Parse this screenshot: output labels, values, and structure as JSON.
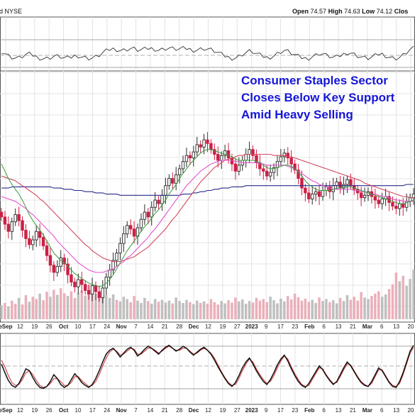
{
  "header": {
    "left_fragment": "nd  NYSE",
    "open_label": "Open",
    "open_value": "74.57",
    "high_label": "High",
    "high_value": "74.63",
    "low_label": "Low",
    "low_value": "74.12",
    "close_label": "Clos"
  },
  "annotation": {
    "line1": "Consumer Staples Sector",
    "line2": "Closes Below Key Support",
    "line3": "Amid Heavy Selling"
  },
  "colors": {
    "up": "#2a2a2a",
    "down": "#cc1f44",
    "ma_short": "#3a9a3a",
    "ma_mid": "#e055cf",
    "ma_long": "#d04a5e",
    "ma_longest": "#2a2a8a",
    "annotation": "#1616d8",
    "stoch_k": "#111111",
    "stoch_d": "#cc2a2a",
    "vol_up": "#b8b8b8",
    "vol_down": "#e9a7b3"
  },
  "chart_data": {
    "type": "candlestick",
    "x_axis_labels": [
      "eSep",
      "12",
      "19",
      "26",
      "Oct",
      "10",
      "17",
      "24",
      "Nov",
      "7",
      "14",
      "21",
      "28",
      "Dec",
      "12",
      "19",
      "27",
      "2023",
      "9",
      "17",
      "23",
      "Feb",
      "6",
      "13",
      "21",
      "Mar",
      "6",
      "13",
      "20"
    ],
    "x_axis_bold": [
      "eSep",
      "Oct",
      "Nov",
      "Dec",
      "2023",
      "Feb",
      "Mar"
    ],
    "x_axis_labels_bottom": [
      "eSep",
      "12",
      "19",
      "26",
      "Oct",
      "10",
      "17",
      "24",
      "Nov",
      "7",
      "14",
      "21",
      "28",
      "Dec",
      "12",
      "19",
      "27",
      "2023",
      "9",
      "17",
      "23",
      "Feb",
      "6",
      "13",
      "21",
      "Mar",
      "6",
      "13",
      "20"
    ],
    "closes": [
      68.2,
      67.6,
      67.0,
      67.8,
      68.4,
      67.9,
      67.1,
      66.4,
      65.9,
      66.3,
      67.0,
      66.5,
      65.8,
      65.0,
      64.2,
      63.6,
      64.1,
      64.8,
      64.3,
      63.4,
      62.8,
      62.4,
      63.0,
      62.6,
      62.1,
      61.8,
      62.5,
      62.0,
      61.5,
      62.3,
      63.2,
      63.8,
      64.6,
      65.2,
      66.0,
      66.8,
      67.5,
      67.2,
      66.6,
      67.3,
      68.0,
      68.6,
      68.2,
      69.0,
      69.6,
      69.3,
      70.0,
      70.8,
      71.4,
      71.0,
      71.7,
      72.2,
      72.8,
      73.3,
      73.1,
      73.6,
      74.2,
      74.0,
      74.6,
      74.3,
      73.8,
      73.4,
      72.9,
      73.3,
      73.7,
      73.1,
      72.6,
      72.0,
      72.5,
      72.9,
      73.4,
      73.8,
      73.3,
      72.7,
      72.2,
      72.0,
      71.6,
      71.9,
      72.3,
      72.8,
      73.2,
      73.5,
      73.1,
      72.6,
      72.1,
      71.4,
      70.6,
      70.2,
      69.7,
      70.1,
      70.3,
      69.9,
      70.4,
      70.7,
      70.3,
      70.8,
      71.1,
      70.6,
      70.9,
      71.3,
      70.8,
      70.5,
      70.2,
      69.8,
      70.0,
      70.3,
      69.9,
      69.6,
      69.3,
      69.7,
      69.9,
      69.4,
      69.1,
      68.9,
      69.3,
      69.0,
      69.5,
      69.8,
      70.1
    ],
    "ma_short": [
      72.6,
      72.0,
      71.4,
      70.9,
      70.5,
      70.1,
      69.6,
      69.0,
      68.4,
      67.9,
      67.5,
      67.1,
      66.7,
      66.2,
      65.7,
      65.2,
      64.9,
      64.6,
      64.4,
      64.1,
      63.8,
      63.5,
      63.3,
      63.1,
      62.9,
      62.7,
      62.6,
      62.5,
      62.4,
      62.5,
      62.7,
      63.0,
      63.4,
      63.9,
      64.4,
      64.9,
      65.4,
      65.8,
      66.2,
      66.6,
      67.0,
      67.4,
      67.7,
      68.1,
      68.5,
      68.8,
      69.2,
      69.6,
      70.1,
      70.5,
      70.9,
      71.4,
      71.8,
      72.2,
      72.6,
      72.9,
      73.2,
      73.5,
      73.7,
      73.8,
      73.8,
      73.7,
      73.6,
      73.5,
      73.4,
      73.3,
      73.2,
      73.0,
      72.9,
      72.9,
      72.9,
      72.9,
      72.9,
      72.8,
      72.7,
      72.5,
      72.3,
      72.2,
      72.2,
      72.3,
      72.4,
      72.5,
      72.5,
      72.4,
      72.2,
      71.9,
      71.6,
      71.2,
      70.9,
      70.7,
      70.5,
      70.4,
      70.4,
      70.4,
      70.4,
      70.5,
      70.6,
      70.6,
      70.7,
      70.7,
      70.7,
      70.6,
      70.5,
      70.4,
      70.3,
      70.2,
      70.1,
      70.0,
      69.9,
      69.8,
      69.7,
      69.6,
      69.5,
      69.4,
      69.3,
      69.3,
      69.4,
      69.5,
      69.6
    ],
    "ma_mid": [
      69.9,
      69.8,
      69.7,
      69.6,
      69.5,
      69.3,
      69.1,
      68.9,
      68.6,
      68.4,
      68.1,
      67.8,
      67.5,
      67.2,
      66.9,
      66.6,
      66.2,
      65.9,
      65.6,
      65.3,
      65.0,
      64.7,
      64.4,
      64.2,
      64.0,
      63.8,
      63.7,
      63.6,
      63.6,
      63.6,
      63.7,
      63.8,
      63.9,
      64.1,
      64.3,
      64.5,
      64.8,
      65.0,
      65.3,
      65.6,
      65.9,
      66.2,
      66.5,
      66.9,
      67.2,
      67.6,
      68.0,
      68.4,
      68.8,
      69.2,
      69.6,
      70.0,
      70.4,
      70.8,
      71.1,
      71.4,
      71.7,
      72.0,
      72.2,
      72.4,
      72.6,
      72.7,
      72.8,
      72.9,
      72.9,
      72.9,
      72.9,
      72.8,
      72.8,
      72.7,
      72.7,
      72.7,
      72.7,
      72.7,
      72.6,
      72.6,
      72.5,
      72.5,
      72.5,
      72.5,
      72.5,
      72.5,
      72.4,
      72.3,
      72.2,
      72.0,
      71.8,
      71.6,
      71.4,
      71.2,
      71.1,
      70.9,
      70.8,
      70.7,
      70.6,
      70.5,
      70.5,
      70.5,
      70.5,
      70.5,
      70.5,
      70.4,
      70.4,
      70.3,
      70.3,
      70.2,
      70.1,
      70.1,
      70.0,
      69.9,
      69.9,
      69.8,
      69.7,
      69.6,
      69.6,
      69.5,
      69.5,
      69.5,
      69.5
    ],
    "ma_long": [
      71.6,
      71.5,
      71.4,
      71.3,
      71.2,
      71.0,
      70.8,
      70.6,
      70.4,
      70.2,
      70.0,
      69.7,
      69.5,
      69.2,
      68.9,
      68.6,
      68.3,
      68.0,
      67.7,
      67.4,
      67.1,
      66.8,
      66.5,
      66.2,
      65.9,
      65.7,
      65.4,
      65.2,
      65.0,
      64.8,
      64.7,
      64.6,
      64.5,
      64.5,
      64.5,
      64.6,
      64.7,
      64.8,
      64.9,
      65.1,
      65.3,
      65.5,
      65.7,
      66.0,
      66.3,
      66.6,
      66.9,
      67.2,
      67.6,
      68.0,
      68.3,
      68.7,
      69.1,
      69.5,
      69.9,
      70.3,
      70.7,
      71.1,
      71.4,
      71.7,
      72.0,
      72.3,
      72.5,
      72.7,
      72.9,
      73.0,
      73.1,
      73.2,
      73.3,
      73.3,
      73.4,
      73.4,
      73.4,
      73.4,
      73.4,
      73.4,
      73.4,
      73.4,
      73.3,
      73.3,
      73.3,
      73.3,
      73.2,
      73.2,
      73.1,
      73.0,
      72.9,
      72.8,
      72.7,
      72.6,
      72.5,
      72.4,
      72.3,
      72.2,
      72.1,
      72.0,
      71.9,
      71.8,
      71.7,
      71.6,
      71.5,
      71.4,
      71.3,
      71.2,
      71.0,
      70.9,
      70.8,
      70.7,
      70.6,
      70.5,
      70.4,
      70.3,
      70.2,
      70.1,
      70.0,
      69.9,
      69.9,
      69.8,
      69.8
    ],
    "ma_longest": [
      70.6,
      70.6,
      70.6,
      70.7,
      70.7,
      70.7,
      70.7,
      70.7,
      70.7,
      70.7,
      70.7,
      70.7,
      70.7,
      70.7,
      70.7,
      70.6,
      70.6,
      70.6,
      70.5,
      70.5,
      70.5,
      70.4,
      70.4,
      70.4,
      70.3,
      70.3,
      70.3,
      70.2,
      70.2,
      70.2,
      70.1,
      70.1,
      70.1,
      70.1,
      70.0,
      70.0,
      70.0,
      70.0,
      70.0,
      70.0,
      70.0,
      70.0,
      70.0,
      70.0,
      70.0,
      70.0,
      70.0,
      70.0,
      70.0,
      70.0,
      70.0,
      70.0,
      70.1,
      70.1,
      70.1,
      70.2,
      70.2,
      70.3,
      70.3,
      70.4,
      70.4,
      70.5,
      70.5,
      70.6,
      70.6,
      70.6,
      70.7,
      70.7,
      70.7,
      70.7,
      70.8,
      70.8,
      70.8,
      70.8,
      70.8,
      70.8,
      70.8,
      70.8,
      70.8,
      70.8,
      70.8,
      70.8,
      70.8,
      70.8,
      70.8,
      70.8,
      70.8,
      70.8,
      70.8,
      70.8,
      70.8,
      70.8,
      70.8,
      70.8,
      70.8,
      70.8,
      70.8,
      70.8,
      70.8,
      70.8,
      70.8,
      70.8,
      70.8,
      70.8,
      70.8,
      70.8,
      70.8,
      70.8,
      70.8,
      70.8,
      70.8,
      70.8,
      70.8,
      70.8,
      70.8,
      70.8,
      70.9,
      70.9,
      70.9
    ],
    "volume": [
      36,
      42,
      33,
      48,
      40,
      55,
      38,
      62,
      45,
      58,
      52,
      66,
      49,
      71,
      58,
      76,
      63,
      80,
      67,
      60,
      72,
      55,
      68,
      74,
      61,
      88,
      79,
      66,
      58,
      70,
      62,
      55,
      64,
      50,
      46,
      58,
      52,
      44,
      60,
      48,
      42,
      55,
      47,
      40,
      52,
      45,
      50,
      43,
      48,
      41,
      56,
      47,
      42,
      50,
      44,
      39,
      48,
      42,
      46,
      40,
      52,
      44,
      38,
      47,
      41,
      49,
      43,
      56,
      46,
      51,
      40,
      47,
      43,
      55,
      48,
      52,
      44,
      58,
      49,
      41,
      53,
      46,
      60,
      51,
      66,
      57,
      48,
      53,
      45,
      50,
      42,
      56,
      47,
      52,
      44,
      49,
      41,
      55,
      47,
      62,
      50,
      58,
      48,
      70,
      56,
      52,
      60,
      66,
      72,
      58,
      64,
      78,
      90,
      120,
      98,
      112,
      86,
      104,
      128
    ],
    "volume_up": [
      true,
      false,
      true,
      false,
      false,
      true,
      false,
      false,
      true,
      false,
      false,
      true,
      false,
      false,
      true,
      false,
      true,
      false,
      false,
      true,
      false,
      false,
      true,
      false,
      true,
      false,
      false,
      true,
      false,
      true,
      true,
      true,
      true,
      false,
      true,
      true,
      true,
      false,
      false,
      true,
      true,
      true,
      false,
      true,
      true,
      false,
      true,
      true,
      true,
      false,
      true,
      true,
      true,
      true,
      false,
      true,
      true,
      false,
      true,
      false,
      false,
      false,
      false,
      true,
      true,
      false,
      false,
      false,
      true,
      true,
      true,
      true,
      false,
      false,
      false,
      false,
      false,
      true,
      true,
      true,
      true,
      true,
      false,
      false,
      false,
      false,
      false,
      false,
      false,
      true,
      true,
      false,
      true,
      true,
      false,
      true,
      true,
      false,
      true,
      true,
      false,
      false,
      false,
      false,
      true,
      true,
      false,
      false,
      false,
      true,
      true,
      false,
      false,
      false,
      true,
      false,
      true,
      true,
      true
    ],
    "stoch_k": [
      58,
      40,
      24,
      14,
      10,
      18,
      32,
      48,
      44,
      30,
      18,
      10,
      8,
      12,
      22,
      36,
      28,
      16,
      10,
      14,
      26,
      38,
      30,
      20,
      14,
      10,
      16,
      28,
      44,
      62,
      78,
      86,
      90,
      82,
      72,
      80,
      88,
      92,
      86,
      74,
      80,
      88,
      94,
      90,
      84,
      78,
      86,
      92,
      96,
      90,
      84,
      88,
      94,
      90,
      82,
      76,
      82,
      88,
      92,
      86,
      78,
      66,
      52,
      40,
      28,
      18,
      12,
      20,
      34,
      50,
      62,
      70,
      58,
      44,
      32,
      22,
      16,
      26,
      40,
      56,
      68,
      76,
      64,
      48,
      34,
      22,
      14,
      10,
      18,
      30,
      42,
      54,
      46,
      34,
      24,
      16,
      22,
      36,
      50,
      62,
      54,
      42,
      30,
      20,
      14,
      12,
      22,
      36,
      50,
      44,
      32,
      20,
      12,
      10,
      22,
      40,
      62,
      84,
      96
    ],
    "stoch_d": [
      66,
      52,
      34,
      20,
      14,
      16,
      26,
      40,
      44,
      36,
      24,
      14,
      10,
      12,
      18,
      28,
      28,
      22,
      14,
      14,
      20,
      32,
      32,
      24,
      18,
      12,
      14,
      22,
      36,
      54,
      70,
      82,
      88,
      84,
      76,
      78,
      84,
      90,
      88,
      78,
      78,
      84,
      90,
      90,
      86,
      80,
      84,
      90,
      94,
      90,
      86,
      86,
      90,
      90,
      84,
      78,
      80,
      86,
      90,
      86,
      80,
      70,
      56,
      42,
      30,
      20,
      14,
      16,
      28,
      44,
      58,
      68,
      62,
      48,
      36,
      26,
      18,
      22,
      34,
      50,
      64,
      74,
      68,
      52,
      38,
      26,
      16,
      12,
      14,
      26,
      38,
      50,
      48,
      36,
      26,
      18,
      20,
      32,
      46,
      58,
      56,
      44,
      32,
      22,
      16,
      12,
      18,
      32,
      46,
      46,
      34,
      22,
      14,
      12,
      18,
      36,
      58,
      80,
      92
    ]
  }
}
